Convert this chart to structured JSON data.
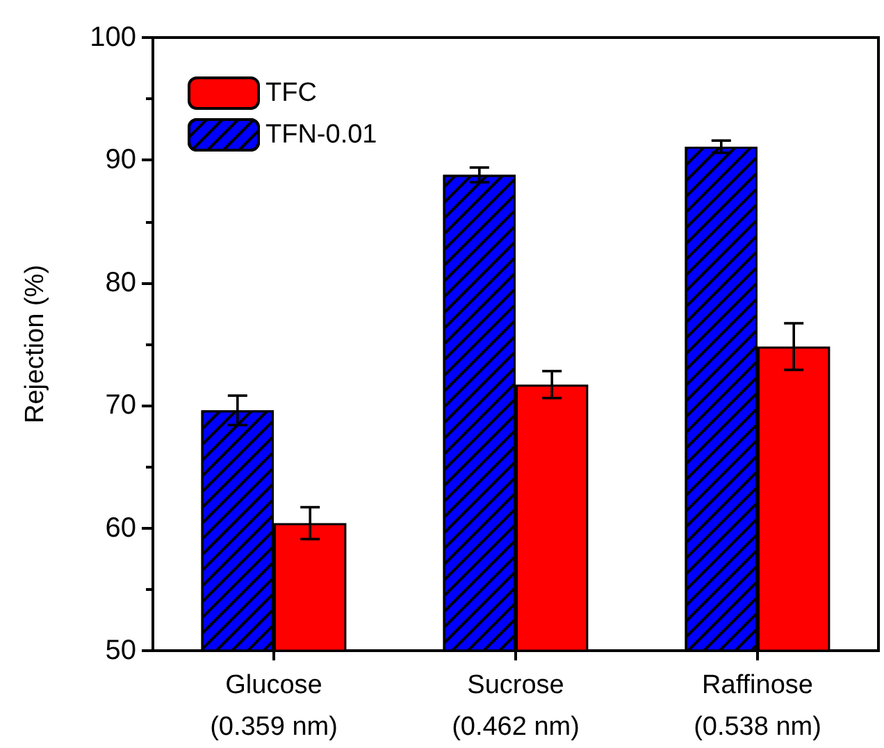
{
  "chart_data": {
    "type": "bar",
    "ylabel": "Rejection (%)",
    "categories": [
      "Glucose\n(0.359 nm)",
      "Sucrose\n(0.462 nm)",
      "Raffinose\n(0.538 nm)"
    ],
    "series": [
      {
        "name": "TFN-0.01",
        "color": "#0000ff",
        "values": [
          69.6,
          88.8,
          91.1
        ],
        "errors": [
          1.2,
          0.6,
          0.5
        ]
      },
      {
        "name": "TFC",
        "color": "#ff0000",
        "values": [
          60.4,
          71.7,
          74.8
        ],
        "errors": [
          1.3,
          1.1,
          1.9
        ]
      }
    ],
    "ylim": [
      50,
      100
    ],
    "yticks": [
      50,
      60,
      70,
      80,
      90,
      100
    ],
    "grid": false,
    "legend": "top left"
  }
}
